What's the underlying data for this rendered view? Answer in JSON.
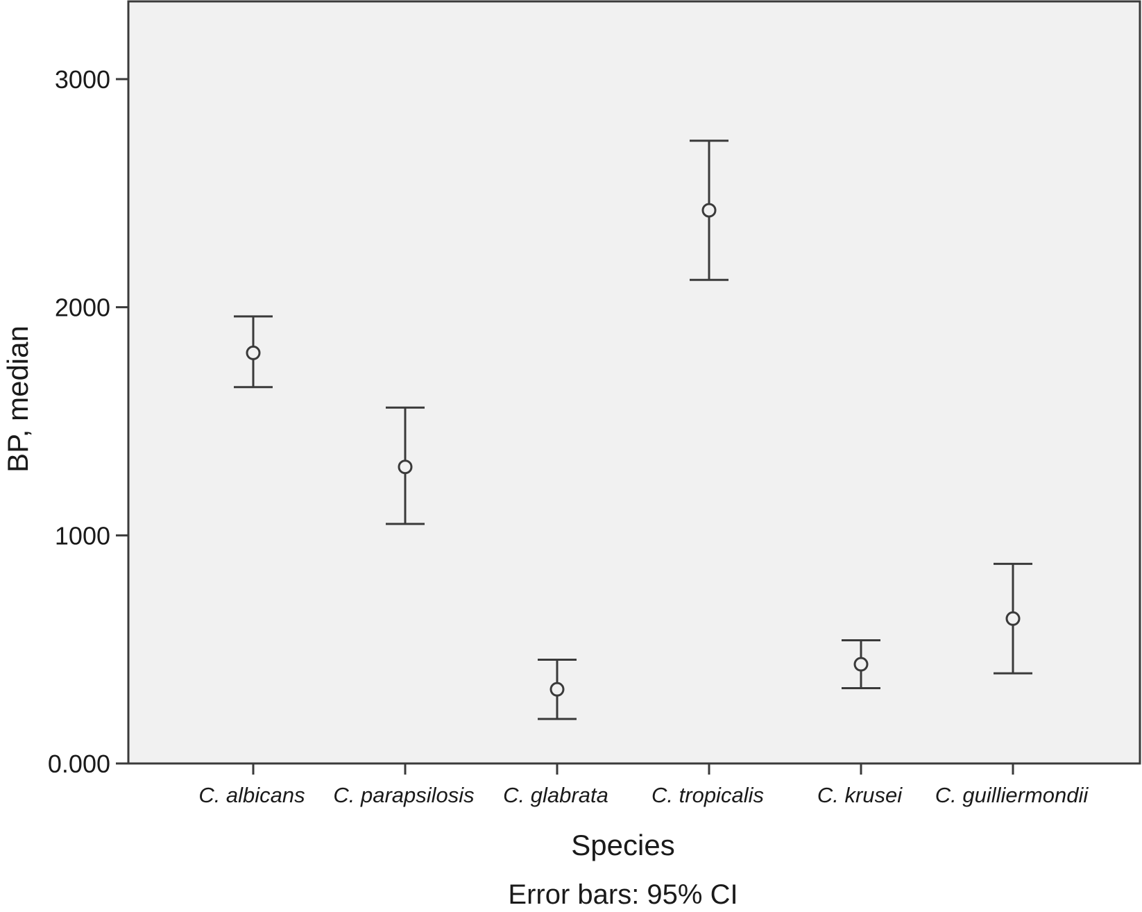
{
  "chart_data": {
    "type": "scatter",
    "title": "",
    "xlabel": "Species",
    "ylabel": "BP, median",
    "note": "Error bars: 95% CI",
    "ylim": [
      0,
      3300
    ],
    "y_ticks": [
      {
        "value": 0,
        "label": "0.000"
      },
      {
        "value": 1000,
        "label": "1000"
      },
      {
        "value": 2000,
        "label": "2000"
      },
      {
        "value": 3000,
        "label": "3000"
      }
    ],
    "grid": false,
    "categories": [
      "C. albicans",
      "C. parapsilosis",
      "C. glabrata",
      "C. tropicalis",
      "C. krusei",
      "C. guilliermondii"
    ],
    "values": [
      1800,
      1300,
      325,
      2425,
      435,
      635
    ],
    "ci_lower": [
      1650,
      1050,
      195,
      2120,
      330,
      395
    ],
    "ci_upper": [
      1960,
      1560,
      455,
      2730,
      540,
      875
    ],
    "colors": {
      "plot_background": "#f1f1f1",
      "marks": "#3a3a3a",
      "axis": "#3a3a3a"
    }
  }
}
